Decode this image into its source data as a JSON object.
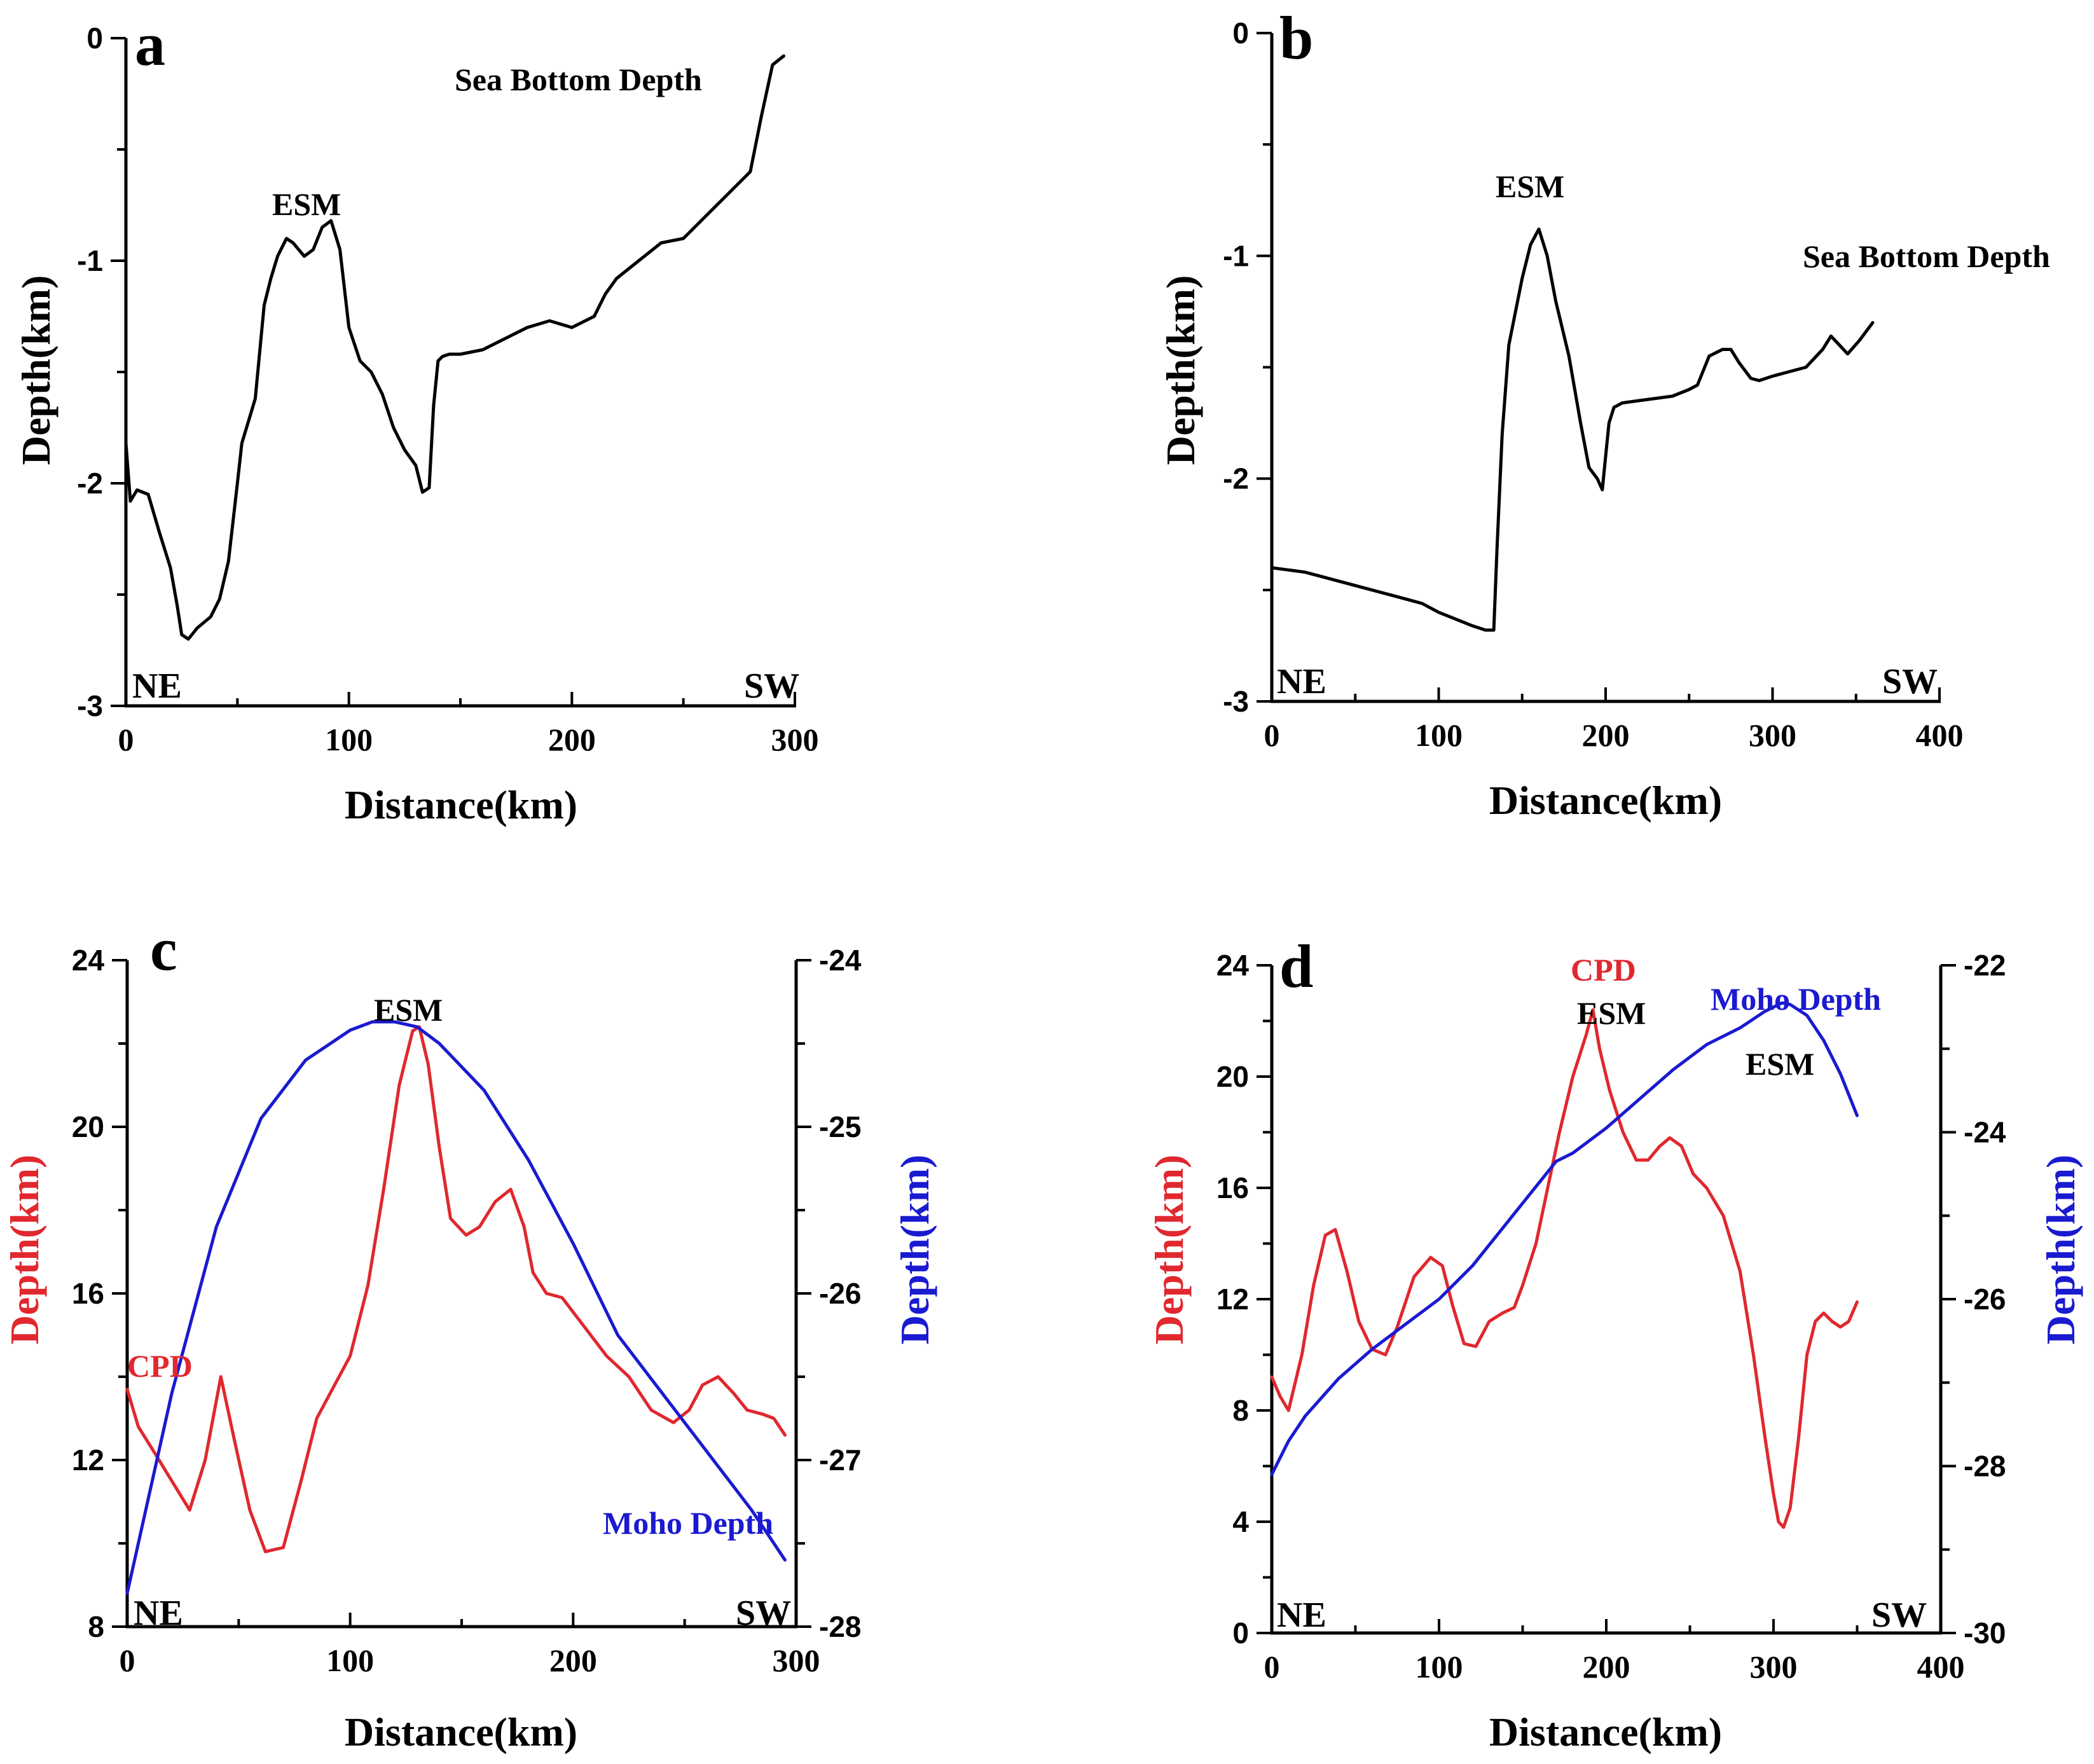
{
  "colors": {
    "black": "#000000",
    "cpd": "#e0282e",
    "moho": "#1a1ad0"
  },
  "chart_data": [
    {
      "panel": "a",
      "type": "line",
      "xlabel": "Distance(km)",
      "ylabel": "Depth(km)",
      "xlim": [
        0,
        300
      ],
      "ylim": [
        -3,
        0
      ],
      "xticks": [
        "0",
        "100",
        "200",
        "300"
      ],
      "yticks": [
        "-3",
        "-2",
        "-1",
        "0"
      ],
      "series": [
        {
          "name": "Sea Bottom Depth",
          "x": [
            0,
            2,
            5,
            10,
            15,
            20,
            23,
            25,
            28,
            32,
            38,
            42,
            46,
            50,
            52,
            55,
            58,
            62,
            65,
            68,
            72,
            75,
            80,
            84,
            88,
            92,
            96,
            100,
            105,
            110,
            115,
            120,
            125,
            130,
            133,
            136,
            138,
            140,
            142,
            145,
            150,
            160,
            170,
            180,
            190,
            200,
            210,
            215,
            220,
            230,
            240,
            250,
            260,
            270,
            280,
            285,
            290,
            295
          ],
          "y": [
            -1.82,
            -2.08,
            -2.03,
            -2.05,
            -2.22,
            -2.38,
            -2.55,
            -2.68,
            -2.7,
            -2.65,
            -2.6,
            -2.52,
            -2.35,
            -2.0,
            -1.82,
            -1.72,
            -1.62,
            -1.2,
            -1.08,
            -0.98,
            -0.9,
            -0.92,
            -0.98,
            -0.95,
            -0.85,
            -0.82,
            -0.95,
            -1.3,
            -1.45,
            -1.5,
            -1.6,
            -1.75,
            -1.85,
            -1.92,
            -2.04,
            -2.02,
            -1.65,
            -1.45,
            -1.43,
            -1.42,
            -1.42,
            -1.4,
            -1.35,
            -1.3,
            -1.27,
            -1.3,
            -1.25,
            -1.15,
            -1.08,
            -1.0,
            -0.92,
            -0.9,
            -0.8,
            -0.7,
            -0.6,
            -0.35,
            -0.12,
            -0.08
          ]
        }
      ],
      "annotations": [
        "Sea Bottom Depth",
        "ESM"
      ],
      "corner_labels": [
        "NE",
        "SW"
      ]
    },
    {
      "panel": "b",
      "type": "line",
      "xlabel": "Distance(km)",
      "ylabel": "Depth(km)",
      "xlim": [
        0,
        400
      ],
      "ylim": [
        -3,
        0
      ],
      "xticks": [
        "0",
        "100",
        "200",
        "300",
        "400"
      ],
      "yticks": [
        "-3",
        "-2",
        "-1",
        "0"
      ],
      "series": [
        {
          "name": "Sea Bottom Depth",
          "x": [
            0,
            10,
            20,
            30,
            40,
            50,
            60,
            70,
            80,
            90,
            100,
            110,
            120,
            128,
            133,
            135,
            138,
            142,
            146,
            150,
            155,
            160,
            165,
            170,
            178,
            185,
            190,
            195,
            198,
            200,
            202,
            205,
            210,
            220,
            230,
            240,
            250,
            255,
            262,
            270,
            275,
            280,
            287,
            292,
            300,
            310,
            320,
            330,
            335,
            340,
            345,
            352,
            360
          ],
          "y": [
            -2.4,
            -2.41,
            -2.42,
            -2.44,
            -2.46,
            -2.48,
            -2.5,
            -2.52,
            -2.54,
            -2.56,
            -2.6,
            -2.63,
            -2.66,
            -2.68,
            -2.68,
            -2.3,
            -1.8,
            -1.4,
            -1.25,
            -1.1,
            -0.95,
            -0.88,
            -1.0,
            -1.2,
            -1.45,
            -1.75,
            -1.95,
            -2.0,
            -2.05,
            -1.9,
            -1.75,
            -1.68,
            -1.66,
            -1.65,
            -1.64,
            -1.63,
            -1.6,
            -1.58,
            -1.45,
            -1.42,
            -1.42,
            -1.48,
            -1.55,
            -1.56,
            -1.54,
            -1.52,
            -1.5,
            -1.42,
            -1.36,
            -1.4,
            -1.44,
            -1.38,
            -1.3
          ]
        }
      ],
      "annotations": [
        "ESM",
        "Sea Bottom Depth"
      ],
      "corner_labels": [
        "NE",
        "SW"
      ]
    },
    {
      "panel": "c",
      "type": "line",
      "xlabel": "Distance(km)",
      "ylabel_left": "Depth(km)",
      "ylabel_right": "Depth(km)",
      "xlim": [
        0,
        300
      ],
      "ylim_left": [
        8,
        24
      ],
      "ylim_right": [
        -28,
        -24
      ],
      "xticks": [
        "0",
        "100",
        "200",
        "300"
      ],
      "yticks_left": [
        "8",
        "12",
        "16",
        "20",
        "24"
      ],
      "yticks_right": [
        "-28",
        "-27",
        "-26",
        "-25",
        "-24"
      ],
      "series": [
        {
          "name": "CPD",
          "axis": "left",
          "x": [
            0,
            5,
            12,
            20,
            28,
            35,
            42,
            48,
            55,
            62,
            70,
            78,
            85,
            92,
            100,
            108,
            115,
            122,
            128,
            131,
            135,
            140,
            145,
            152,
            158,
            165,
            172,
            178,
            182,
            188,
            195,
            205,
            215,
            225,
            235,
            245,
            252,
            258,
            265,
            272,
            278,
            285,
            290,
            295
          ],
          "y": [
            13.7,
            12.8,
            12.2,
            11.5,
            10.8,
            12.0,
            14.0,
            12.5,
            10.8,
            9.8,
            9.9,
            11.5,
            13.0,
            13.7,
            14.5,
            16.2,
            18.5,
            21.0,
            22.3,
            22.4,
            21.5,
            19.5,
            17.8,
            17.4,
            17.6,
            18.2,
            18.5,
            17.6,
            16.5,
            16.0,
            15.9,
            15.2,
            14.5,
            14.0,
            13.2,
            12.9,
            13.2,
            13.8,
            14.0,
            13.6,
            13.2,
            13.1,
            13.0,
            12.6
          ]
        },
        {
          "name": "Moho Depth",
          "axis": "right",
          "x": [
            0,
            20,
            40,
            60,
            80,
            100,
            110,
            120,
            130,
            140,
            160,
            180,
            200,
            220,
            240,
            260,
            280,
            295
          ],
          "y": [
            -27.8,
            -26.6,
            -25.6,
            -24.95,
            -24.6,
            -24.42,
            -24.37,
            -24.37,
            -24.4,
            -24.5,
            -24.78,
            -25.2,
            -25.7,
            -26.25,
            -26.6,
            -26.95,
            -27.3,
            -27.6
          ]
        }
      ],
      "annotations": [
        "ESM",
        "CPD",
        "Moho Depth"
      ],
      "corner_labels": [
        "NE",
        "SW"
      ]
    },
    {
      "panel": "d",
      "type": "line",
      "xlabel": "Distance(km)",
      "ylabel_left": "Depth(km)",
      "ylabel_right": "Depth(km)",
      "xlim": [
        0,
        400
      ],
      "ylim_left": [
        0,
        24
      ],
      "ylim_right": [
        -30,
        -22
      ],
      "xticks": [
        "0",
        "100",
        "200",
        "300",
        "400"
      ],
      "yticks_left": [
        "0",
        "4",
        "8",
        "12",
        "16",
        "20",
        "24"
      ],
      "yticks_right": [
        "-30",
        "-28",
        "-26",
        "-24",
        "-22"
      ],
      "series": [
        {
          "name": "CPD",
          "axis": "left",
          "x": [
            0,
            5,
            10,
            18,
            25,
            32,
            38,
            45,
            52,
            60,
            68,
            75,
            85,
            95,
            102,
            108,
            115,
            122,
            130,
            138,
            145,
            150,
            158,
            165,
            172,
            180,
            188,
            192,
            196,
            202,
            210,
            218,
            225,
            232,
            238,
            245,
            252,
            260,
            270,
            280,
            288,
            295,
            300,
            303,
            306,
            310,
            315,
            320,
            325,
            330,
            335,
            340,
            345,
            350
          ],
          "y": [
            9.2,
            8.5,
            8.0,
            10.0,
            12.5,
            14.3,
            14.5,
            13.0,
            11.2,
            10.2,
            10.0,
            11.0,
            12.8,
            13.5,
            13.2,
            11.8,
            10.4,
            10.3,
            11.2,
            11.5,
            11.7,
            12.5,
            14.0,
            16.0,
            18.0,
            20.0,
            21.5,
            22.4,
            21.0,
            19.5,
            18.0,
            17.0,
            17.0,
            17.5,
            17.8,
            17.5,
            16.5,
            16.0,
            15.0,
            13.0,
            10.0,
            7.0,
            5.0,
            4.0,
            3.8,
            4.5,
            7.0,
            10.0,
            11.2,
            11.5,
            11.2,
            11.0,
            11.2,
            11.9
          ]
        },
        {
          "name": "Moho Depth",
          "axis": "right",
          "x": [
            0,
            10,
            20,
            40,
            60,
            80,
            100,
            120,
            140,
            160,
            170,
            180,
            200,
            220,
            240,
            260,
            280,
            295,
            305,
            310,
            320,
            330,
            340,
            350
          ],
          "y": [
            -28.1,
            -27.7,
            -27.4,
            -26.95,
            -26.6,
            -26.3,
            -26.0,
            -25.6,
            -25.1,
            -24.6,
            -24.35,
            -24.25,
            -23.95,
            -23.6,
            -23.25,
            -22.95,
            -22.75,
            -22.55,
            -22.45,
            -22.47,
            -22.6,
            -22.9,
            -23.3,
            -23.8
          ]
        }
      ],
      "annotations": [
        "CPD",
        "ESM",
        "Moho Depth",
        "ESM"
      ],
      "corner_labels": [
        "NE",
        "SW"
      ]
    }
  ],
  "panels": {
    "a": {
      "label": "a",
      "xlabel": "Distance(km)",
      "ylabel": "Depth(km)",
      "annot_series": "Sea Bottom Depth",
      "annot_esm": "ESM",
      "ne": "NE",
      "sw": "SW"
    },
    "b": {
      "label": "b",
      "xlabel": "Distance(km)",
      "ylabel": "Depth(km)",
      "annot_series": "Sea Bottom Depth",
      "annot_esm": "ESM",
      "ne": "NE",
      "sw": "SW"
    },
    "c": {
      "label": "c",
      "xlabel": "Distance(km)",
      "ylabel_left": "Depth(km)",
      "ylabel_right": "Depth(km)",
      "annot_cpd": "CPD",
      "annot_moho": "Moho Depth",
      "annot_esm": "ESM",
      "ne": "NE",
      "sw": "SW"
    },
    "d": {
      "label": "d",
      "xlabel": "Distance(km)",
      "ylabel_left": "Depth(km)",
      "ylabel_right": "Depth(km)",
      "annot_cpd": "CPD",
      "annot_moho": "Moho Depth",
      "annot_esm": "ESM",
      "annot_esm2": "ESM",
      "ne": "NE",
      "sw": "SW"
    }
  }
}
